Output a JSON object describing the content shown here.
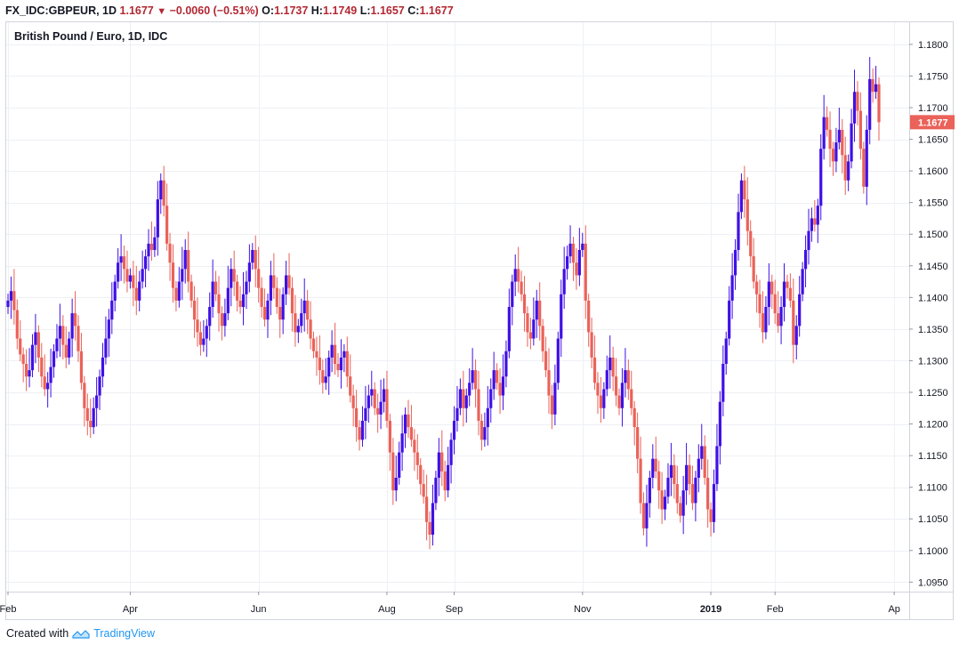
{
  "header": {
    "symbol": "FX_IDC:GBPEUR, 1D",
    "last": "1.1677",
    "change": "−0.0060 (−0.51%)",
    "o_label": "O:",
    "o": "1.1737",
    "h_label": "H:",
    "h": "1.1749",
    "l_label": "L:",
    "l": "1.1657",
    "c_label": "C:",
    "c": "1.1677"
  },
  "chart_title": "British Pound / Euro, 1D, IDC",
  "footer": {
    "created_with": "Created with",
    "brand": "TradingView"
  },
  "colors": {
    "up": "#3f10e6",
    "down": "#ea6259",
    "price_tag": "#ea6259",
    "grid": "#eef0f4",
    "axis_text": "#131722"
  },
  "chart_data": {
    "type": "candlestick",
    "ylim": [
      1.0935,
      1.1835
    ],
    "y_ticks": [
      "1.0950",
      "1.1000",
      "1.1050",
      "1.1100",
      "1.1150",
      "1.1200",
      "1.1250",
      "1.1300",
      "1.1350",
      "1.1400",
      "1.1450",
      "1.1500",
      "1.1550",
      "1.1600",
      "1.1650",
      "1.1700",
      "1.1750",
      "1.1800"
    ],
    "x_labels": [
      {
        "label": "Feb",
        "i": 0,
        "bold": false
      },
      {
        "label": "Apr",
        "i": 40,
        "bold": false
      },
      {
        "label": "Jun",
        "i": 82,
        "bold": false
      },
      {
        "label": "Aug",
        "i": 124,
        "bold": false
      },
      {
        "label": "Sep",
        "i": 146,
        "bold": false
      },
      {
        "label": "Nov",
        "i": 188,
        "bold": false
      },
      {
        "label": "2019",
        "i": 230,
        "bold": true
      },
      {
        "label": "Feb",
        "i": 251,
        "bold": false
      },
      {
        "label": "Ap",
        "i": 290,
        "bold": false
      }
    ],
    "last_price": "1.1677",
    "closes": [
      1.1395,
      1.141,
      1.138,
      1.1335,
      1.131,
      1.1295,
      1.1275,
      1.1285,
      1.1325,
      1.1345,
      1.1305,
      1.1275,
      1.1255,
      1.1265,
      1.129,
      1.1315,
      1.1335,
      1.1355,
      1.1325,
      1.1305,
      1.1335,
      1.1375,
      1.1355,
      1.1315,
      1.1265,
      1.1225,
      1.1205,
      1.1195,
      1.1225,
      1.1245,
      1.1275,
      1.1305,
      1.1335,
      1.1365,
      1.1395,
      1.1425,
      1.1455,
      1.1465,
      1.1445,
      1.1425,
      1.1435,
      1.1415,
      1.1395,
      1.1425,
      1.1445,
      1.1465,
      1.1485,
      1.1475,
      1.1495,
      1.1555,
      1.1585,
      1.1545,
      1.1485,
      1.1455,
      1.1415,
      1.1395,
      1.1425,
      1.1445,
      1.1475,
      1.1425,
      1.1395,
      1.1365,
      1.1345,
      1.1325,
      1.1335,
      1.1355,
      1.1385,
      1.1425,
      1.1405,
      1.1375,
      1.1355,
      1.1375,
      1.1415,
      1.1445,
      1.1425,
      1.1395,
      1.1385,
      1.1405,
      1.1425,
      1.1455,
      1.1475,
      1.1445,
      1.1415,
      1.1385,
      1.1365,
      1.1395,
      1.1435,
      1.1415,
      1.1385,
      1.1365,
      1.1405,
      1.1435,
      1.1415,
      1.1375,
      1.1345,
      1.1355,
      1.1375,
      1.1395,
      1.1365,
      1.1335,
      1.1315,
      1.1305,
      1.1285,
      1.1265,
      1.1275,
      1.1305,
      1.1325,
      1.1295,
      1.1285,
      1.1305,
      1.1315,
      1.1275,
      1.1245,
      1.1225,
      1.1195,
      1.1175,
      1.1205,
      1.1225,
      1.1245,
      1.1255,
      1.1225,
      1.1215,
      1.1235,
      1.1255,
      1.1205,
      1.1155,
      1.1095,
      1.1115,
      1.1155,
      1.1185,
      1.1215,
      1.1195,
      1.1175,
      1.1155,
      1.1135,
      1.1105,
      1.1085,
      1.1045,
      1.1025,
      1.1075,
      1.1115,
      1.1155,
      1.1125,
      1.1095,
      1.1135,
      1.1175,
      1.1205,
      1.1225,
      1.1255,
      1.1225,
      1.1245,
      1.1265,
      1.1285,
      1.1255,
      1.1205,
      1.1175,
      1.1195,
      1.1225,
      1.1255,
      1.1285,
      1.1265,
      1.1245,
      1.1275,
      1.1315,
      1.1385,
      1.1425,
      1.1445,
      1.1425,
      1.1405,
      1.1375,
      1.1345,
      1.1335,
      1.1365,
      1.1395,
      1.1355,
      1.1315,
      1.1285,
      1.1245,
      1.1215,
      1.1265,
      1.1335,
      1.1405,
      1.1445,
      1.1465,
      1.1485,
      1.1455,
      1.1435,
      1.1475,
      1.1485,
      1.1395,
      1.1345,
      1.1305,
      1.1265,
      1.1245,
      1.1225,
      1.1255,
      1.1285,
      1.1305,
      1.1275,
      1.1245,
      1.1225,
      1.1265,
      1.1285,
      1.1255,
      1.1225,
      1.1195,
      1.1145,
      1.1075,
      1.1035,
      1.1075,
      1.1115,
      1.1145,
      1.1125,
      1.1095,
      1.1065,
      1.1085,
      1.1115,
      1.1135,
      1.1105,
      1.1075,
      1.1055,
      1.1095,
      1.1135,
      1.1105,
      1.1075,
      1.1115,
      1.1145,
      1.1165,
      1.1115,
      1.1065,
      1.1045,
      1.1105,
      1.1165,
      1.1235,
      1.1295,
      1.1335,
      1.1395,
      1.1435,
      1.1475,
      1.1535,
      1.1585,
      1.1555,
      1.1505,
      1.1465,
      1.1425,
      1.1405,
      1.1375,
      1.1345,
      1.1385,
      1.1425,
      1.1405,
      1.1375,
      1.1355,
      1.1385,
      1.1425,
      1.1415,
      1.1395,
      1.1325,
      1.1355,
      1.1405,
      1.1445,
      1.1475,
      1.1505,
      1.1525,
      1.1515,
      1.1545,
      1.1635,
      1.1685,
      1.1665,
      1.1635,
      1.1615,
      1.1645,
      1.1665,
      1.1625,
      1.1585,
      1.1615,
      1.1675,
      1.1725,
      1.1695,
      1.1635,
      1.1575,
      1.1665,
      1.1745,
      1.1725,
      1.1737,
      1.1677
    ]
  }
}
